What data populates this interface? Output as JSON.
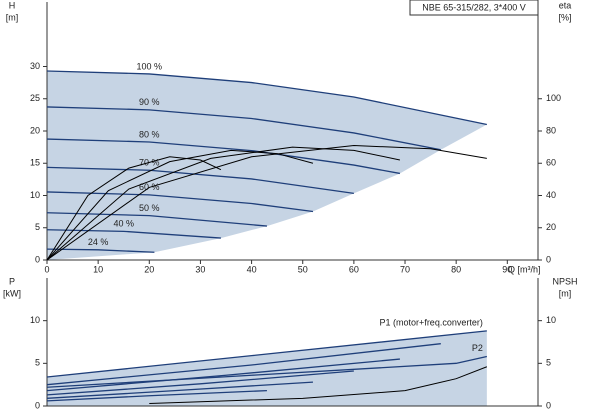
{
  "chart_data": [
    {
      "type": "line",
      "title": "NBE 65-315/282, 3*400 V",
      "ylabel": "H",
      "yunit": "[m]",
      "y2label": "eta",
      "y2unit": "[%]",
      "xlabel": "Q [m³/h]",
      "xlim": [
        0,
        96
      ],
      "xticks": [
        0,
        10,
        20,
        30,
        40,
        50,
        60,
        70,
        80,
        90
      ],
      "ylim": [
        0,
        40
      ],
      "yticks": [
        0,
        5,
        10,
        15,
        20,
        25,
        30
      ],
      "y2lim": [
        0,
        160
      ],
      "y2ticks": [
        0,
        20,
        40,
        60,
        80,
        100
      ],
      "fill_color": "#c6d4e4",
      "series": [
        {
          "name": "100 %",
          "color": "#1f3f7a",
          "x": [
            0,
            20,
            40,
            60,
            86
          ],
          "values": [
            29.3,
            28.85,
            27.51,
            25.27,
            21.0
          ]
        },
        {
          "name": "90 %",
          "color": "#1f3f7a",
          "x": [
            0,
            20,
            40,
            60,
            77
          ],
          "values": [
            23.73,
            23.28,
            21.94,
            19.7,
            17.09
          ]
        },
        {
          "name": "80 %",
          "color": "#1f3f7a",
          "x": [
            0,
            20,
            40,
            60,
            69
          ],
          "values": [
            18.75,
            18.3,
            16.96,
            14.72,
            13.42
          ]
        },
        {
          "name": "70 %",
          "color": "#1f3f7a",
          "x": [
            0,
            20,
            40,
            60
          ],
          "values": [
            14.36,
            13.91,
            12.57,
            10.33
          ]
        },
        {
          "name": "60 %",
          "color": "#1f3f7a",
          "x": [
            0,
            20,
            40,
            52
          ],
          "values": [
            10.55,
            10.1,
            8.76,
            7.52
          ]
        },
        {
          "name": "50 %",
          "color": "#1f3f7a",
          "x": [
            0,
            20,
            43
          ],
          "values": [
            7.33,
            6.88,
            5.26
          ]
        },
        {
          "name": "40 %",
          "color": "#1f3f7a",
          "x": [
            0,
            15,
            34
          ],
          "values": [
            4.69,
            4.44,
            3.4
          ]
        },
        {
          "name": "24 %",
          "color": "#1f3f7a",
          "x": [
            0,
            10,
            21
          ],
          "values": [
            1.69,
            1.58,
            1.2
          ]
        },
        {
          "color": "#000000",
          "axis": "y2",
          "x": [
            0,
            20,
            40,
            60,
            75,
            86
          ],
          "values": [
            0,
            45,
            64,
            71,
            69,
            63
          ]
        },
        {
          "color": "#000000",
          "axis": "y2",
          "x": [
            0,
            16,
            32,
            48,
            60,
            69
          ],
          "values": [
            0,
            44,
            63,
            70,
            68,
            62
          ]
        },
        {
          "color": "#000000",
          "axis": "y2",
          "x": [
            0,
            12,
            24,
            36,
            45,
            52
          ],
          "values": [
            0,
            43,
            61,
            68,
            66,
            60
          ]
        },
        {
          "color": "#000000",
          "axis": "y2",
          "x": [
            0,
            8,
            16,
            24,
            30,
            34
          ],
          "values": [
            0,
            40,
            57,
            64,
            62,
            56
          ]
        }
      ]
    },
    {
      "type": "line",
      "ylabel": "P",
      "yunit": "[kW]",
      "y2label": "NPSH",
      "y2unit": "[m]",
      "xlim": [
        0,
        96
      ],
      "ylim": [
        0,
        15
      ],
      "yticks": [
        0,
        5,
        10
      ],
      "y2lim": [
        0,
        15
      ],
      "y2ticks": [
        0,
        5,
        10
      ],
      "fill_color": "#c6d4e4",
      "series": [
        {
          "name": "P1 (motor+freq.converter)",
          "color": "#1f3f7a",
          "x": [
            0,
            40,
            86
          ],
          "values": [
            3.4,
            5.9,
            8.8
          ]
        },
        {
          "color": "#1f3f7a",
          "x": [
            0,
            40,
            77
          ],
          "values": [
            2.5,
            4.8,
            7.3
          ]
        },
        {
          "color": "#1f3f7a",
          "x": [
            0,
            35,
            69
          ],
          "values": [
            1.8,
            3.6,
            5.5
          ]
        },
        {
          "color": "#1f3f7a",
          "x": [
            0,
            30,
            60
          ],
          "values": [
            1.3,
            2.6,
            4.1
          ]
        },
        {
          "color": "#1f3f7a",
          "x": [
            0,
            25,
            52
          ],
          "values": [
            0.9,
            1.8,
            2.8
          ]
        },
        {
          "color": "#1f3f7a",
          "x": [
            0,
            20,
            43
          ],
          "values": [
            0.6,
            1.2,
            1.8
          ]
        },
        {
          "name": "P2",
          "color": "#1f3f7a",
          "x": [
            0,
            40,
            80,
            86
          ],
          "values": [
            2.2,
            3.6,
            5.0,
            5.8
          ]
        },
        {
          "color": "#000000",
          "axis": "y2",
          "x": [
            20,
            50,
            70,
            80,
            86
          ],
          "values": [
            0.3,
            0.9,
            1.8,
            3.2,
            4.6
          ]
        }
      ]
    }
  ]
}
